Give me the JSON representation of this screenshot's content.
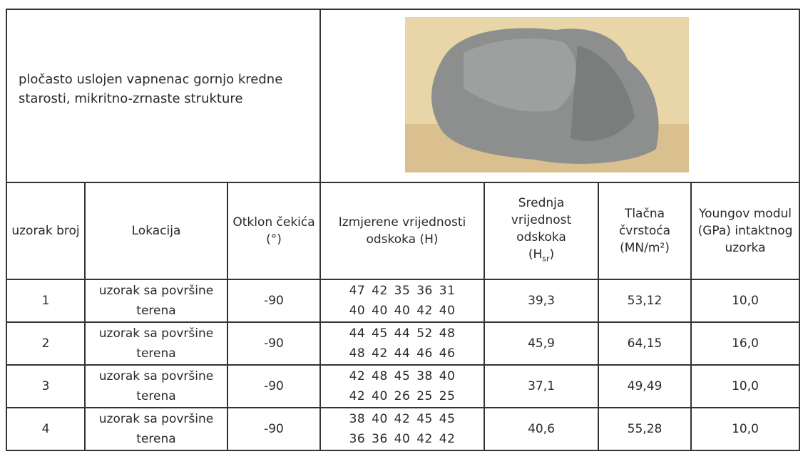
{
  "description": "pločasto uslojen vapnenac gornjo kredne starosti, mikritno-zrnaste strukture",
  "table": {
    "header": [
      "uzorak broj",
      "Lokacija",
      "Otklon čekića (°)",
      "Izmjerene vrijednosti odskoka (H)",
      {
        "text": "Srednja vrijednost odskoka",
        "prefix": "(H",
        "subscript": "sr",
        "suffix": ")"
      },
      "Tlačna čvrstoća (MN/m²)",
      "Youngov modul (GPa) intaktnog uzorka"
    ],
    "rows": [
      {
        "number": "1",
        "location": "uzorak sa površine terena",
        "angle": "-90",
        "measured": [
          [
            47,
            42,
            35,
            36,
            31
          ],
          [
            40,
            40,
            40,
            42,
            40
          ]
        ],
        "mean": "39,3",
        "strength": "53,12",
        "modulus": "10,0"
      },
      {
        "number": "2",
        "location": "uzorak sa površine terena",
        "angle": "-90",
        "measured": [
          [
            44,
            45,
            44,
            52,
            48
          ],
          [
            48,
            42,
            44,
            46,
            46
          ]
        ],
        "mean": "45,9",
        "strength": "64,15",
        "modulus": "16,0"
      },
      {
        "number": "3",
        "location": "uzorak sa površine terena",
        "angle": "-90",
        "measured": [
          [
            42,
            48,
            45,
            38,
            40
          ],
          [
            42,
            40,
            26,
            25,
            25
          ]
        ],
        "mean": "37,1",
        "strength": "49,49",
        "modulus": "10,0"
      },
      {
        "number": "4",
        "location": "uzorak sa površine terena",
        "angle": "-90",
        "measured": [
          [
            38,
            40,
            42,
            45,
            45
          ],
          [
            36,
            36,
            40,
            42,
            42
          ]
        ],
        "mean": "40,6",
        "strength": "55,28",
        "modulus": "10,0"
      }
    ]
  }
}
